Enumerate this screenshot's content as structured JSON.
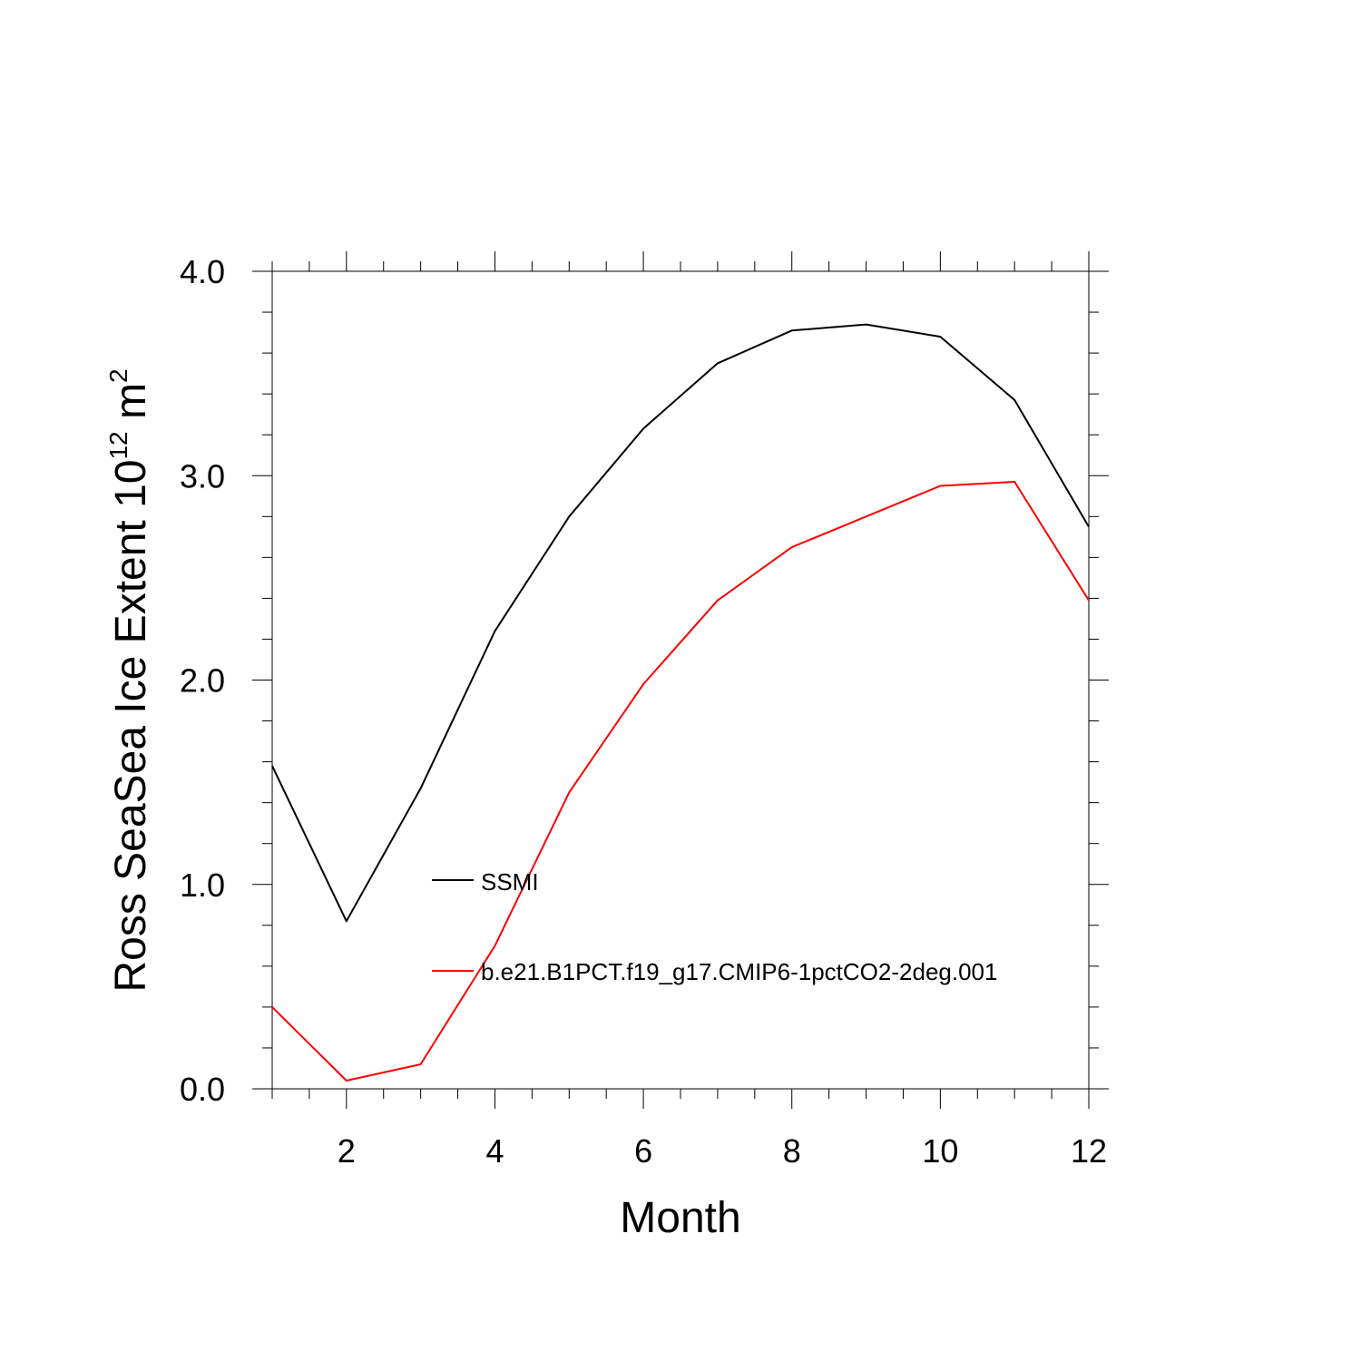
{
  "chart_data": {
    "type": "line",
    "title": "",
    "xlabel": "Month",
    "ylabel_main": "Ross SeaSea Ice Extent 10",
    "ylabel_sup": "12",
    "ylabel_unit": " m",
    "ylabel_unit_sup": "2",
    "xlim": [
      1,
      12
    ],
    "ylim": [
      0,
      4
    ],
    "xticks": [
      2,
      4,
      6,
      8,
      10,
      12
    ],
    "xtick_labels": [
      "2",
      "4",
      "6",
      "8",
      "10",
      "12"
    ],
    "xminor_step": 0.5,
    "yticks": [
      0,
      1,
      2,
      3,
      4
    ],
    "ytick_labels": [
      "0.0",
      "1.0",
      "2.0",
      "3.0",
      "4.0"
    ],
    "yminor_step": 0.2,
    "grid": false,
    "legend_position": "center",
    "x": [
      1,
      2,
      3,
      4,
      5,
      6,
      7,
      8,
      9,
      10,
      11,
      12
    ],
    "series": [
      {
        "name": "SSMI",
        "color": "#000000",
        "values": [
          1.58,
          0.82,
          1.47,
          2.24,
          2.8,
          3.23,
          3.55,
          3.71,
          3.74,
          3.68,
          3.37,
          2.75
        ]
      },
      {
        "name": "b.e21.B1PCT.f19_g17.CMIP6-1pctCO2-2deg.001",
        "color": "#ff0000",
        "values": [
          0.4,
          0.04,
          0.12,
          0.7,
          1.45,
          1.98,
          2.39,
          2.65,
          2.8,
          2.95,
          2.97,
          2.39
        ]
      }
    ]
  }
}
